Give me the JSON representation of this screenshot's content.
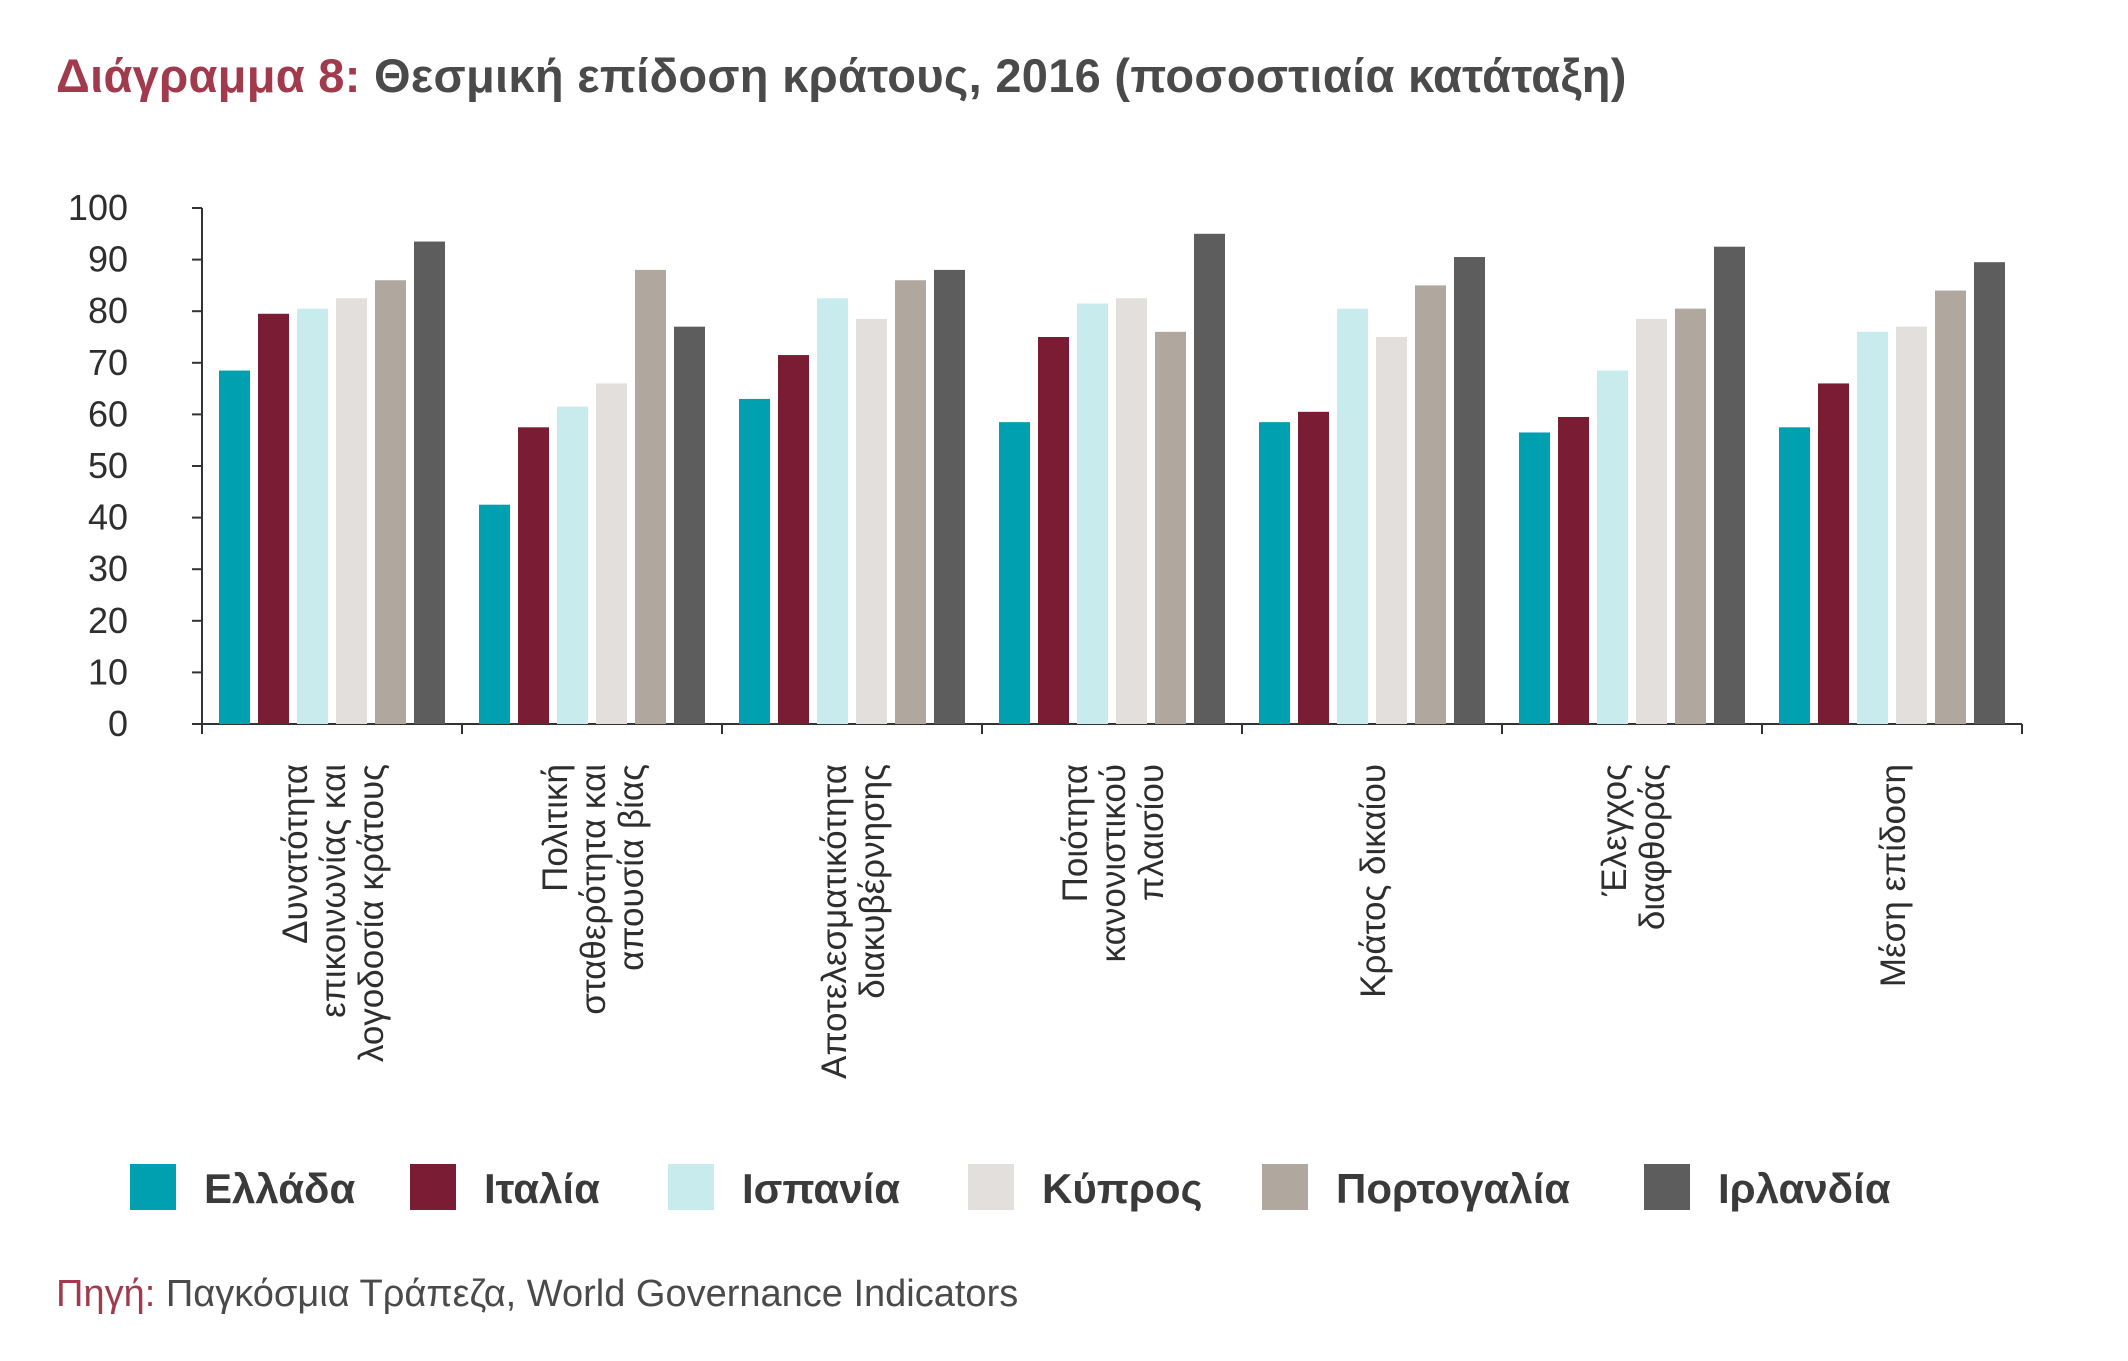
{
  "figure": {
    "title_prefix": "Διάγραμμα 8:",
    "title": " Θεσμική επίδοση κράτους, 2016  (ποσοστιαία κατάταξη)"
  },
  "source": {
    "label": "Πηγή:",
    "text": " Παγκόσμια Τράπεζα, World Governance Indicators"
  },
  "chart_data": {
    "type": "bar",
    "title": "Θεσμική επίδοση κράτους, 2016  (ποσοστιαία κατάταξη)",
    "xlabel": "",
    "ylabel": "",
    "ylim": [
      0,
      100
    ],
    "yticks": [
      0,
      10,
      20,
      30,
      40,
      50,
      60,
      70,
      80,
      90,
      100
    ],
    "grid": false,
    "legend_position": "bottom",
    "categories": [
      [
        "Δυνατότητα",
        "επικοινωνίας και",
        "λογοδοσία κράτους"
      ],
      [
        "Πολιτική",
        "σταθερότητα και",
        "απουσία βίας"
      ],
      [
        "Αποτελεσματικότητα",
        "διακυβέρνησης"
      ],
      [
        "Ποιότητα",
        "κανονιστικού",
        "πλαισίου"
      ],
      [
        "Κράτος δικαίου"
      ],
      [
        "Έλεγχος",
        "διαφθοράς"
      ],
      [
        "Μέση επίδοση"
      ]
    ],
    "series": [
      {
        "name": "Ελλάδα",
        "color": "#00a0b0",
        "values": [
          68.5,
          42.5,
          63,
          58.5,
          58.5,
          56.5,
          57.5
        ]
      },
      {
        "name": "Ιταλία",
        "color": "#7a1c34",
        "values": [
          79.5,
          57.5,
          71.5,
          75,
          60.5,
          59.5,
          66
        ]
      },
      {
        "name": "Ισπανία",
        "color": "#c8ecee",
        "values": [
          80.5,
          61.5,
          82.5,
          81.5,
          80.5,
          68.5,
          76
        ]
      },
      {
        "name": "Κύπρος",
        "color": "#e3dfdc",
        "values": [
          82.5,
          66,
          78.5,
          82.5,
          75,
          78.5,
          77
        ]
      },
      {
        "name": "Πορτογαλία",
        "color": "#b0a89e",
        "values": [
          86,
          88,
          86,
          76,
          85,
          80.5,
          84
        ]
      },
      {
        "name": "Ιρλανδία",
        "color": "#5d5d5d",
        "values": [
          93.5,
          77,
          88,
          95,
          90.5,
          92.5,
          89.5
        ]
      }
    ]
  }
}
